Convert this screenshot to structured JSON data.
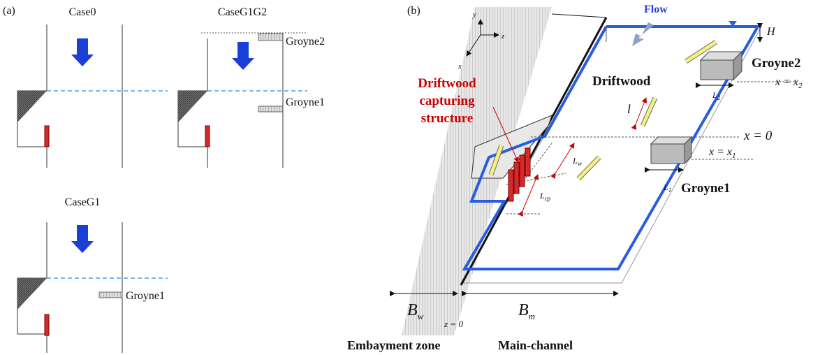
{
  "panel_a": {
    "label": "(a)",
    "cases": [
      {
        "title": "Case0"
      },
      {
        "title": "CaseG1G2",
        "groyne_upper": "Groyne2",
        "groyne_lower": "Groyne1"
      },
      {
        "title": "CaseG1",
        "groyne_lower": "Groyne1"
      }
    ]
  },
  "panel_b": {
    "label": "(b)",
    "flow": "Flow",
    "depth": "H",
    "axes": {
      "y": "y",
      "x": "x",
      "z": "z"
    },
    "structure_label": [
      "Driftwood",
      "capturing",
      "structure"
    ],
    "driftwood": "Driftwood",
    "groyne2": "Groyne2",
    "groyne1": "Groyne1",
    "l": "l",
    "L2": {
      "main": "L",
      "sub": "2"
    },
    "L1": {
      "main": "L",
      "sub": "1"
    },
    "Lw": {
      "main": "L",
      "sub": "w"
    },
    "Lcp": {
      "main": "L",
      "sub": "cp"
    },
    "x_x2": {
      "main": "x = x",
      "sub": "2"
    },
    "x_0": "x = 0",
    "x_x1": {
      "main": "x = x",
      "sub": "1"
    },
    "Bw": {
      "main": "B",
      "sub": "w"
    },
    "Bm": {
      "main": "B",
      "sub": "m"
    },
    "z_0": "z = 0",
    "embayment": "Embayment zone",
    "main_channel": "Main-channel"
  }
}
